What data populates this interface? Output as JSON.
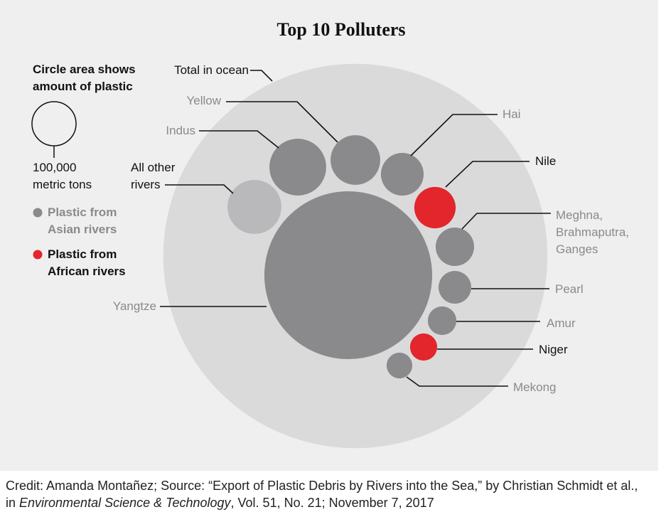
{
  "chart_data": {
    "type": "bubble",
    "title": "Top 10 Polluters",
    "legend": {
      "title": "Circle area shows amount of plastic",
      "size": {
        "value": 100000,
        "label": "100,000 metric tons"
      },
      "groups": [
        {
          "name": "Plastic from Asian rivers",
          "color": "#8a8a8c"
        },
        {
          "name": "Plastic from African rivers",
          "color": "#e2262b"
        }
      ]
    },
    "total": {
      "name": "Total in ocean",
      "value": 7600000,
      "color": "#dadadb"
    },
    "other": {
      "name": "All other rivers",
      "value": 150000,
      "color": "#b9b9bb"
    },
    "categories": [
      "Yangtze",
      "Indus",
      "Yellow",
      "Hai",
      "Nile",
      "Meghna, Brahmaputra, Ganges",
      "Pearl",
      "Amur",
      "Niger",
      "Mekong"
    ],
    "values": [
      1450000,
      166000,
      127000,
      94000,
      88000,
      76000,
      55000,
      42000,
      38000,
      34000
    ],
    "colors": [
      "#8a8a8c",
      "#8a8a8c",
      "#8a8a8c",
      "#8a8a8c",
      "#e2262b",
      "#8a8a8c",
      "#8a8a8c",
      "#8a8a8c",
      "#e2262b",
      "#8a8a8c"
    ],
    "credit": [
      "Credit: Amanda Montañez; Source: “Export of Plastic Debris by Rivers into the Sea,” by Christian Schmidt et al., in ",
      "Environmental Science & Technology",
      ", Vol. 51, No. 21; November 7, 2017"
    ]
  }
}
